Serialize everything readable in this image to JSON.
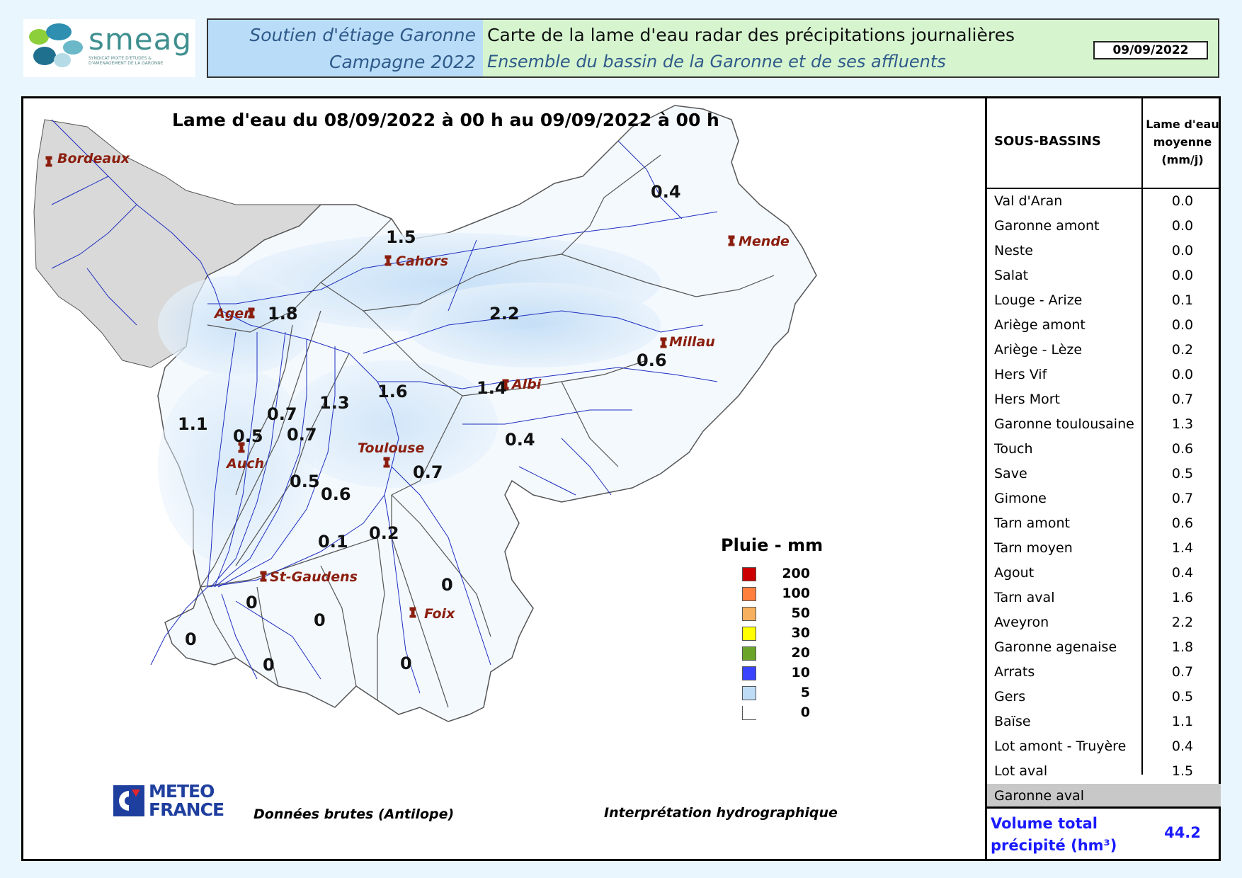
{
  "logo": {
    "name": "smeag",
    "subtitle": "SYNDICAT MIXTE D'ETUDES & D'AMENAGEMENT DE LA GARONNE"
  },
  "header": {
    "left_line1": "Soutien d'étiage Garonne",
    "left_line2": "Campagne 2022",
    "right_line1": "Carte de la lame d'eau radar des précipitations journalières",
    "right_line2": "Ensemble du bassin de la Garonne et de ses affluents",
    "date": "09/09/2022"
  },
  "map": {
    "title": "Lame d'eau du 08/09/2022 à 00 h au 09/09/2022 à 00 h",
    "cities": [
      "Bordeaux",
      "Cahors",
      "Mende",
      "Agen",
      "Millau",
      "Albi",
      "Toulouse",
      "Auch",
      "St-Gaudens",
      "Foix"
    ],
    "basin_values": [
      "0.4",
      "1.5",
      "1.8",
      "2.2",
      "0.6",
      "1.4",
      "1.6",
      "1.3",
      "0.7",
      "1.1",
      "0.5",
      "0.7",
      "0.4",
      "0.7",
      "0.5",
      "0.6",
      "0.1",
      "0.2",
      "0",
      "0",
      "0",
      "0",
      "0",
      "0"
    ]
  },
  "legend": {
    "title": "Pluie - mm",
    "items": [
      {
        "label": "200",
        "color": "#cc0000"
      },
      {
        "label": "100",
        "color": "#ff7f3f"
      },
      {
        "label": "50",
        "color": "#f7b15e"
      },
      {
        "label": "30",
        "color": "#ffff00"
      },
      {
        "label": "20",
        "color": "#6aa52a"
      },
      {
        "label": "10",
        "color": "#3a44ff"
      },
      {
        "label": "5",
        "color": "#bfdcf7"
      },
      {
        "label": "0",
        "color": "#ffffff"
      }
    ]
  },
  "table": {
    "col1": "SOUS-BASSINS",
    "col2": "Lame d'eau moyenne (mm/j)",
    "rows": [
      {
        "name": "Val d'Aran",
        "value": "0.0"
      },
      {
        "name": "Garonne amont",
        "value": "0.0"
      },
      {
        "name": "Neste",
        "value": "0.0"
      },
      {
        "name": "Salat",
        "value": "0.0"
      },
      {
        "name": "Louge - Arize",
        "value": "0.1"
      },
      {
        "name": "Ariège amont",
        "value": "0.0"
      },
      {
        "name": "Ariège - Lèze",
        "value": "0.2"
      },
      {
        "name": "Hers Vif",
        "value": "0.0"
      },
      {
        "name": "Hers Mort",
        "value": "0.7"
      },
      {
        "name": "Garonne toulousaine",
        "value": "1.3"
      },
      {
        "name": "Touch",
        "value": "0.6"
      },
      {
        "name": "Save",
        "value": "0.5"
      },
      {
        "name": "Gimone",
        "value": "0.7"
      },
      {
        "name": "Tarn amont",
        "value": "0.6"
      },
      {
        "name": "Tarn moyen",
        "value": "1.4"
      },
      {
        "name": "Agout",
        "value": "0.4"
      },
      {
        "name": "Tarn aval",
        "value": "1.6"
      },
      {
        "name": "Aveyron",
        "value": "2.2"
      },
      {
        "name": "Garonne agenaise",
        "value": "1.8"
      },
      {
        "name": "Arrats",
        "value": "0.7"
      },
      {
        "name": "Gers",
        "value": "0.5"
      },
      {
        "name": "Baïse",
        "value": "1.1"
      },
      {
        "name": "Lot amont - Truyère",
        "value": "0.4"
      },
      {
        "name": "Lot aval",
        "value": "1.5"
      },
      {
        "name": "Garonne aval",
        "value": ""
      }
    ],
    "total_label": "Volume total précipité (hm³)",
    "total_value": "44.2"
  },
  "footer": {
    "org": "METEO FRANCE",
    "source": "Données brutes (Antilope)",
    "interpretation": "Interprétation hydrographique"
  }
}
